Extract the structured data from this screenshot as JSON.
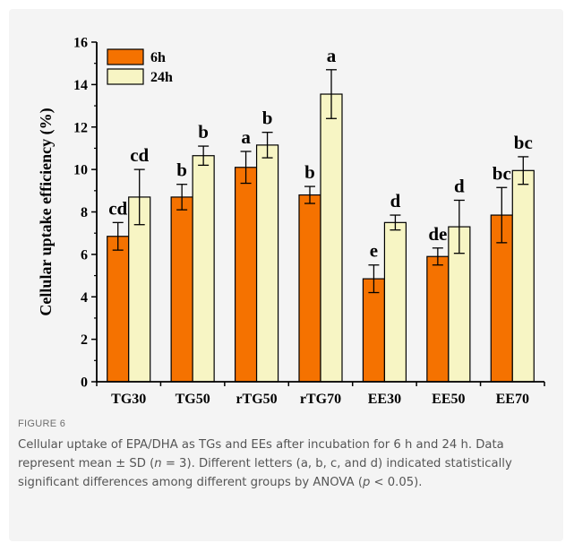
{
  "figure_label": "FIGURE 6",
  "caption": {
    "p1": "Cellular uptake of EPA/DHA as TGs and EEs after incubation for 6 h and 24 h. Data represent mean ± SD (",
    "n_var": "n",
    "p2": " = 3). Different letters (a, b, c, and d) indicated statistically significant differences among different groups by ANOVA (",
    "p_var": "p",
    "p3": " < 0.05)."
  },
  "chart_data": {
    "type": "bar",
    "title": "",
    "xlabel": "",
    "ylabel": "Cellular uptake efficiency (%)",
    "ylim": [
      0,
      16
    ],
    "yticks": [
      0,
      2,
      4,
      6,
      8,
      10,
      12,
      14,
      16
    ],
    "categories": [
      "TG30",
      "TG50",
      "rTG50",
      "rTG70",
      "EE30",
      "EE50",
      "EE70"
    ],
    "legend_position": "top-left",
    "grid": false,
    "series": [
      {
        "name": "6h",
        "color": "#f57200",
        "values": [
          6.85,
          8.7,
          10.1,
          8.8,
          4.85,
          5.9,
          7.85
        ],
        "errors": [
          0.65,
          0.6,
          0.75,
          0.4,
          0.65,
          0.4,
          1.3
        ],
        "letters": [
          "cd",
          "b",
          "a",
          "b",
          "e",
          "de",
          "bc"
        ]
      },
      {
        "name": "24h",
        "color": "#f7f5c4",
        "values": [
          8.7,
          10.65,
          11.15,
          13.55,
          7.5,
          7.3,
          9.95
        ],
        "errors": [
          1.3,
          0.45,
          0.6,
          1.15,
          0.35,
          1.25,
          0.65
        ],
        "letters": [
          "cd",
          "b",
          "b",
          "a",
          "d",
          "d",
          "bc"
        ]
      }
    ]
  }
}
